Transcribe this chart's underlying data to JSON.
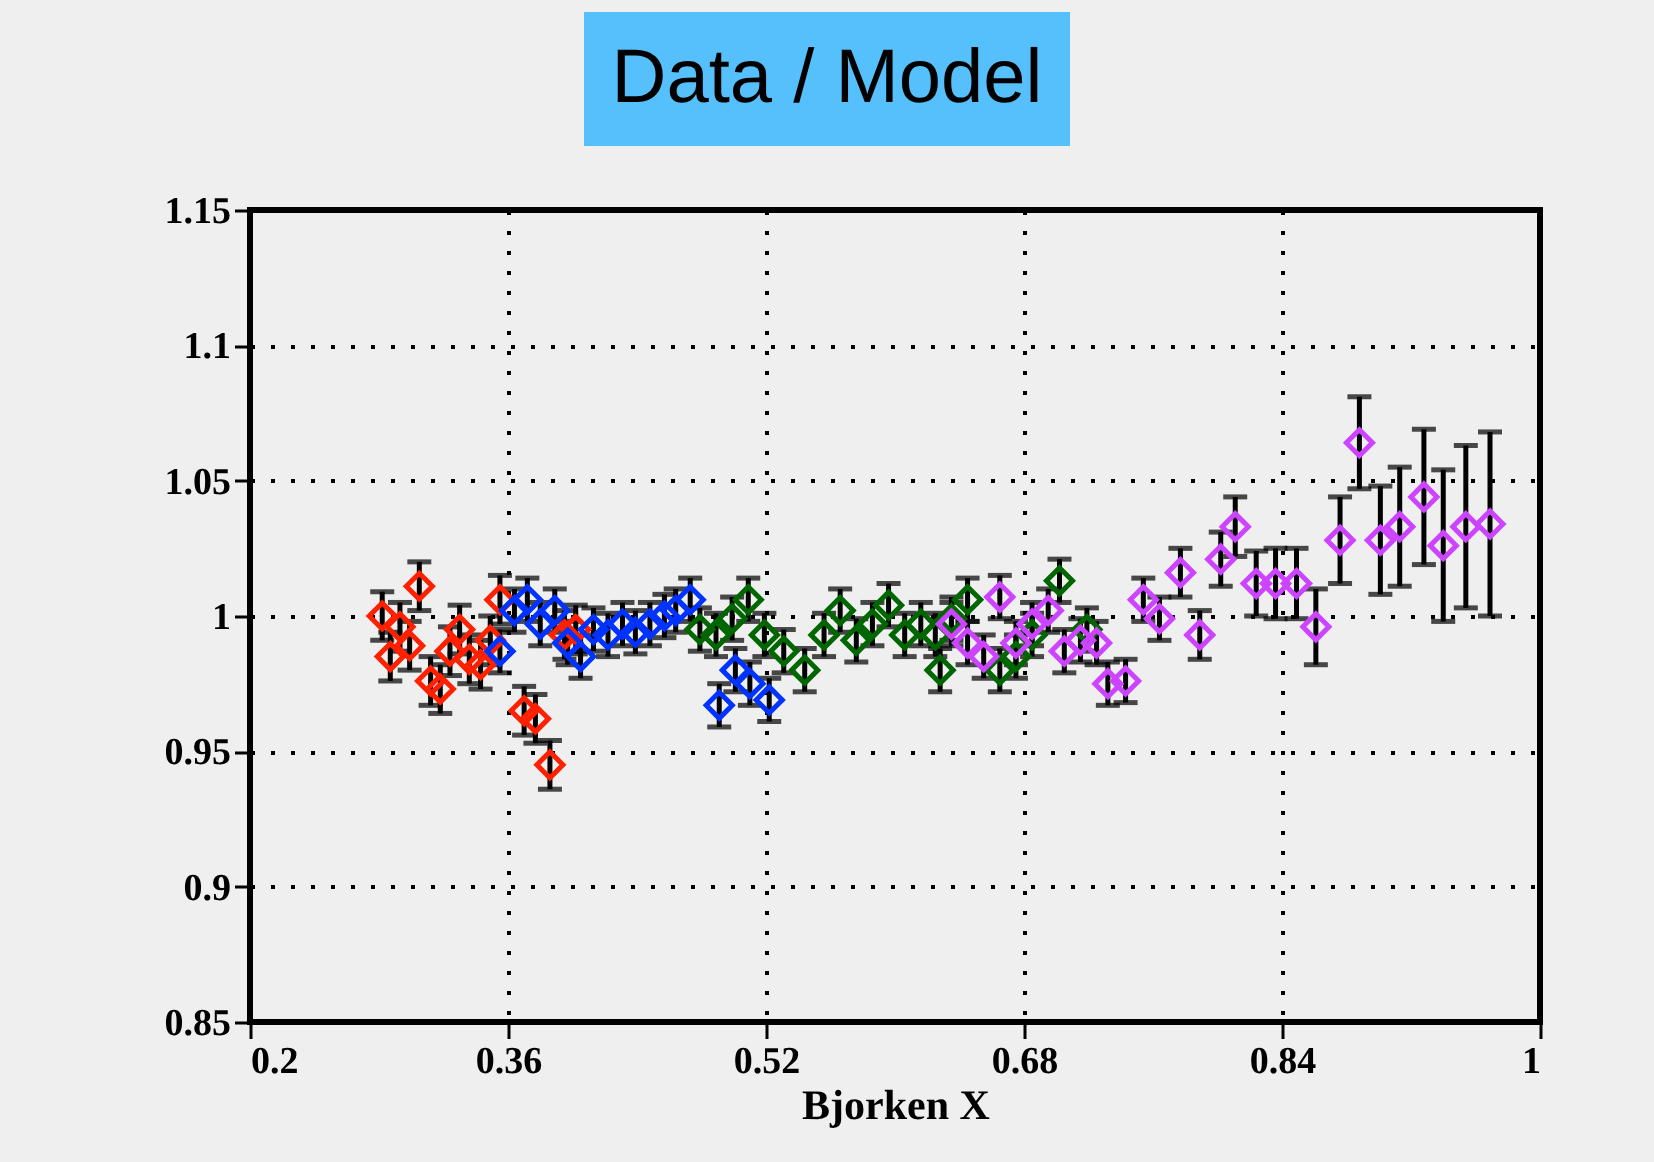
{
  "chart_data": {
    "type": "scatter",
    "title": "Data / Model",
    "xlabel": "Bjorken X",
    "xlim": [
      0.2,
      1
    ],
    "xticks": [
      0.2,
      0.36,
      0.52,
      0.68,
      0.84,
      1
    ],
    "ylim": [
      0.85,
      1.15
    ],
    "yticks": [
      0.85,
      0.9,
      0.95,
      1,
      1.05,
      1.1,
      1.15
    ],
    "grid": true,
    "marker": "diamond",
    "legend": false,
    "series": [
      {
        "color": "#ff2000",
        "x": [
          0.282,
          0.287,
          0.293,
          0.299,
          0.305,
          0.312,
          0.318,
          0.324,
          0.33,
          0.336,
          0.343,
          0.349,
          0.355,
          0.37,
          0.377,
          0.386,
          0.395,
          0.402
        ],
        "values": [
          1.0,
          0.985,
          0.996,
          0.989,
          1.011,
          0.976,
          0.973,
          0.987,
          0.995,
          0.984,
          0.982,
          0.991,
          1.006,
          0.965,
          0.962,
          0.945,
          0.993,
          0.995
        ],
        "errors": [
          0.009,
          0.009,
          0.009,
          0.009,
          0.009,
          0.009,
          0.009,
          0.009,
          0.009,
          0.009,
          0.009,
          0.009,
          0.009,
          0.009,
          0.009,
          0.009,
          0.009,
          0.009
        ]
      },
      {
        "color": "#0033ff",
        "x": [
          0.355,
          0.364,
          0.372,
          0.38,
          0.389,
          0.397,
          0.405,
          0.413,
          0.422,
          0.431,
          0.439,
          0.448,
          0.457,
          0.464,
          0.473,
          0.491,
          0.501,
          0.51,
          0.522
        ],
        "values": [
          0.987,
          1.002,
          1.006,
          0.997,
          1.002,
          0.99,
          0.985,
          0.995,
          0.993,
          0.997,
          0.994,
          0.997,
          1.0,
          1.002,
          1.006,
          0.967,
          0.98,
          0.975,
          0.969
        ],
        "errors": [
          0.008,
          0.008,
          0.008,
          0.008,
          0.008,
          0.008,
          0.008,
          0.008,
          0.008,
          0.008,
          0.008,
          0.008,
          0.008,
          0.008,
          0.008,
          0.008,
          0.008,
          0.008,
          0.008
        ]
      },
      {
        "color": "#006600",
        "x": [
          0.479,
          0.489,
          0.499,
          0.509,
          0.519,
          0.531,
          0.544,
          0.556,
          0.566,
          0.576,
          0.586,
          0.596,
          0.606,
          0.616,
          0.625,
          0.628,
          0.635,
          0.645,
          0.665,
          0.675,
          0.685,
          0.702,
          0.719
        ],
        "values": [
          0.995,
          0.993,
          0.999,
          1.006,
          0.993,
          0.987,
          0.98,
          0.993,
          1.002,
          0.991,
          0.997,
          1.004,
          0.993,
          0.997,
          0.993,
          0.98,
          0.999,
          1.006,
          0.98,
          0.985,
          0.993,
          1.013,
          0.995
        ],
        "errors": [
          0.008,
          0.008,
          0.008,
          0.008,
          0.008,
          0.008,
          0.008,
          0.008,
          0.008,
          0.008,
          0.008,
          0.008,
          0.008,
          0.008,
          0.008,
          0.008,
          0.008,
          0.008,
          0.008,
          0.008,
          0.008,
          0.008,
          0.008
        ]
      },
      {
        "color": "#cc44ff",
        "x": [
          0.635,
          0.645,
          0.655,
          0.665,
          0.675,
          0.685,
          0.695,
          0.705,
          0.715,
          0.725,
          0.732,
          0.743,
          0.754,
          0.764,
          0.777,
          0.789,
          0.802,
          0.811,
          0.824,
          0.836,
          0.849,
          0.861,
          0.876,
          0.888,
          0.901,
          0.913,
          0.928,
          0.94,
          0.954,
          0.969
        ],
        "values": [
          0.997,
          0.99,
          0.985,
          1.007,
          0.99,
          0.997,
          1.002,
          0.987,
          0.991,
          0.99,
          0.975,
          0.976,
          1.006,
          0.999,
          1.016,
          0.993,
          1.021,
          1.033,
          1.012,
          1.012,
          1.012,
          0.996,
          1.028,
          1.064,
          1.028,
          1.033,
          1.044,
          1.026,
          1.033,
          1.034
        ],
        "errors": [
          0.008,
          0.008,
          0.008,
          0.008,
          0.008,
          0.008,
          0.008,
          0.008,
          0.008,
          0.008,
          0.008,
          0.008,
          0.008,
          0.008,
          0.009,
          0.009,
          0.01,
          0.011,
          0.012,
          0.013,
          0.013,
          0.014,
          0.016,
          0.017,
          0.02,
          0.022,
          0.025,
          0.028,
          0.03,
          0.034
        ]
      }
    ]
  }
}
